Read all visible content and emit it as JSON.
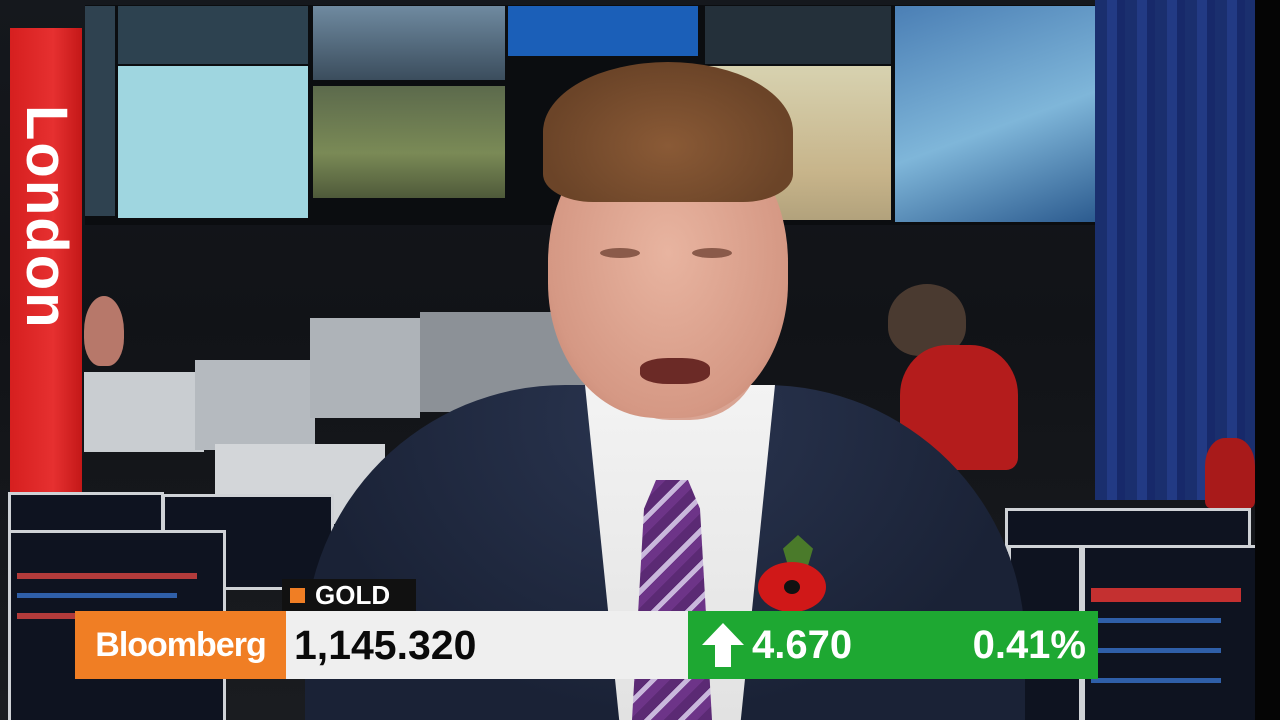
{
  "banner": {
    "city": "London",
    "color": "#e02626"
  },
  "ticker": {
    "instrument": "GOLD",
    "brand": "Bloomberg",
    "price": "1,145.320",
    "change": "4.670",
    "change_pct": "0.41%",
    "direction_icon": "arrow-up-icon",
    "colors": {
      "brand": "#f07e24",
      "price_bg": "#efefef",
      "change_bg": "#1ea832",
      "tag_bg": "#111111"
    }
  }
}
